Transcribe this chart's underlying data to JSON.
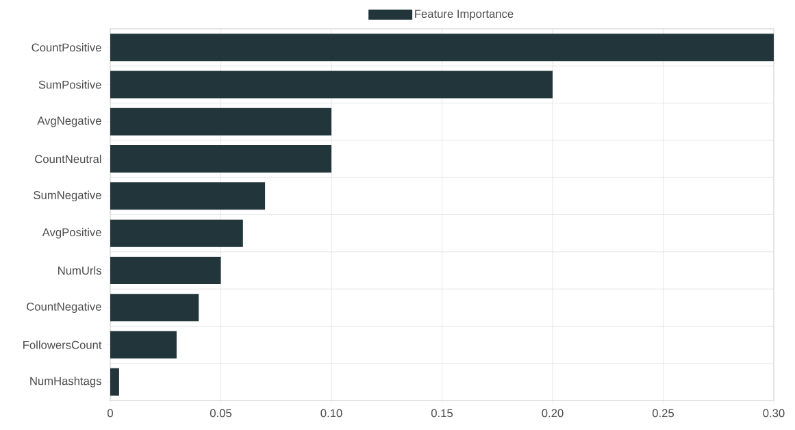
{
  "chart_data": {
    "type": "bar",
    "orientation": "horizontal",
    "categories": [
      "CountPositive",
      "SumPositive",
      "AvgNegative",
      "CountNeutral",
      "SumNegative",
      "AvgPositive",
      "NumUrls",
      "CountNegative",
      "FollowersCount",
      "NumHashtags"
    ],
    "series": [
      {
        "name": "Feature Importance",
        "color": "#22353a",
        "values": [
          0.3,
          0.2,
          0.1,
          0.1,
          0.07,
          0.06,
          0.05,
          0.04,
          0.03,
          0.004
        ]
      }
    ],
    "xlim": [
      0,
      0.3
    ],
    "xticks": [
      0,
      0.05,
      {
        "value": 0.1,
        "label": "0.10"
      },
      0.15,
      {
        "value": 0.2,
        "label": "0.20"
      },
      0.25,
      {
        "value": 0.3,
        "label": "0.30"
      }
    ],
    "grid": true,
    "legend": "top"
  }
}
